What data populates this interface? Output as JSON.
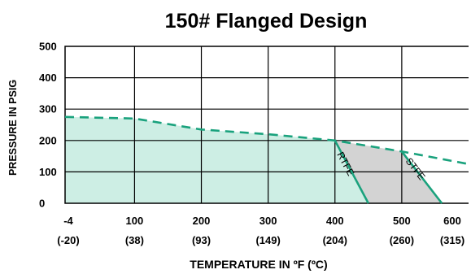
{
  "chart_data": {
    "type": "area",
    "title": "150# Flanged Design",
    "xlabel": "TEMPERATURE IN ºF (ºC)",
    "ylabel": "PRESSURE IN PSIG",
    "x_ticks": [
      {
        "f": "-4",
        "c": "(-20)"
      },
      {
        "f": "100",
        "c": "(38)"
      },
      {
        "f": "200",
        "c": "(93)"
      },
      {
        "f": "300",
        "c": "(149)"
      },
      {
        "f": "400",
        "c": "(204)"
      },
      {
        "f": "500",
        "c": "(260)"
      },
      {
        "f": "600",
        "c": "(315)"
      }
    ],
    "y_ticks": [
      "500",
      "400",
      "300",
      "200",
      "100",
      "0"
    ],
    "xlim": [
      -4,
      600
    ],
    "ylim": [
      0,
      500
    ],
    "grid": true,
    "series": [
      {
        "points": [
          [
            -4,
            275
          ],
          [
            100,
            270
          ],
          [
            200,
            235
          ],
          [
            300,
            220
          ],
          [
            400,
            200
          ],
          [
            500,
            165
          ],
          [
            600,
            125
          ]
        ]
      },
      {
        "name": "RTFE",
        "points": [
          [
            -4,
            0
          ],
          [
            -4,
            275
          ],
          [
            100,
            270
          ],
          [
            200,
            235
          ],
          [
            300,
            220
          ],
          [
            400,
            200
          ],
          [
            450,
            0
          ]
        ]
      },
      {
        "name": "STFE",
        "points": [
          [
            400,
            200
          ],
          [
            500,
            165
          ],
          [
            560,
            0
          ],
          [
            450,
            0
          ]
        ]
      }
    ],
    "colors": {
      "rtfe_fill": "#cdeee4",
      "stfe_fill": "#d3d3d3",
      "line": "#1aa27d",
      "grid": "#000000"
    }
  }
}
